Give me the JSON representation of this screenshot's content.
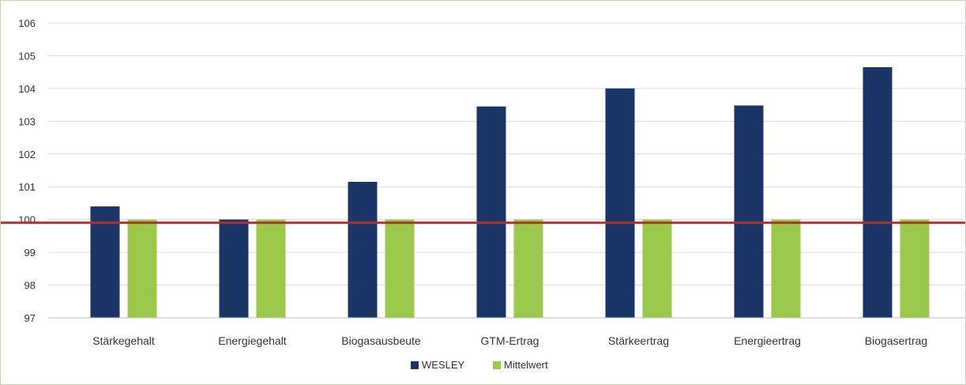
{
  "chart_data": {
    "type": "bar",
    "title": "",
    "xlabel": "",
    "ylabel": "",
    "categories": [
      "Stärkegehalt",
      "Energiegehalt",
      "Biogasausbeute",
      "GTM-Ertrag",
      "Stärkeertrag",
      "Energieertrag",
      "Biogasertrag"
    ],
    "series": [
      {
        "name": "WESLEY",
        "color": "#1b3566",
        "values": [
          100.4,
          100.0,
          101.15,
          103.45,
          104.0,
          103.48,
          104.65
        ]
      },
      {
        "name": "Mittelwert",
        "color": "#9cc94b",
        "values": [
          100,
          100,
          100,
          100,
          100,
          100,
          100
        ]
      }
    ],
    "ylim": [
      97,
      106
    ],
    "yticks": [
      97,
      98,
      99,
      100,
      101,
      102,
      103,
      104,
      105,
      106
    ],
    "grid": true,
    "legend": "bottom-center",
    "reference_line": {
      "value": 99.9,
      "color": "#b03030"
    }
  }
}
